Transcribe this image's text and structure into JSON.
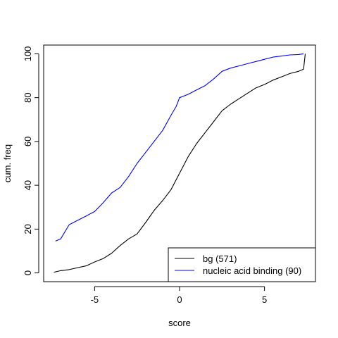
{
  "chart_data": {
    "type": "line",
    "title": "",
    "xlabel": "score",
    "ylabel": "cum. freq",
    "xlim": [
      -8,
      8
    ],
    "ylim": [
      -4,
      104
    ],
    "x_ticks": [
      -5,
      0,
      5
    ],
    "x_tick_labels": [
      "-5",
      "0",
      "5"
    ],
    "y_ticks": [
      0,
      20,
      40,
      60,
      80,
      100
    ],
    "y_tick_labels": [
      "0",
      "20",
      "40",
      "60",
      "80",
      "100"
    ],
    "grid": false,
    "legend_position": "bottom-right",
    "series": [
      {
        "name": "bg (571)",
        "color": "#000000",
        "x": [
          -7.4,
          -7.0,
          -6.5,
          -6.0,
          -5.5,
          -5.0,
          -4.5,
          -4.0,
          -3.5,
          -3.0,
          -2.5,
          -2.0,
          -1.5,
          -1.0,
          -0.5,
          0.0,
          0.5,
          1.0,
          1.5,
          2.0,
          2.5,
          3.0,
          3.5,
          4.0,
          4.5,
          5.0,
          5.5,
          6.0,
          6.5,
          7.0,
          7.3,
          7.4
        ],
        "y": [
          0.3,
          1.0,
          1.5,
          2.4,
          3.2,
          5.0,
          6.5,
          9.0,
          12.5,
          15.5,
          17.8,
          23.0,
          28.5,
          33.0,
          38.0,
          45.5,
          53.0,
          59.0,
          64.0,
          69.0,
          74.0,
          77.0,
          79.5,
          82.0,
          84.5,
          86.0,
          88.0,
          89.5,
          91.0,
          92.0,
          93.0,
          100.0
        ]
      },
      {
        "name": "nucleic acid binding (90)",
        "color": "#0000ff",
        "x": [
          -7.3,
          -7.0,
          -6.5,
          -6.0,
          -5.5,
          -5.0,
          -4.5,
          -4.0,
          -3.5,
          -3.0,
          -2.5,
          -2.0,
          -1.5,
          -1.0,
          -0.5,
          -0.2,
          0.0,
          0.5,
          1.0,
          1.5,
          2.0,
          2.5,
          3.0,
          3.5,
          4.0,
          4.5,
          5.0,
          5.5,
          6.0,
          6.5,
          7.0,
          7.3
        ],
        "y": [
          14.5,
          15.5,
          22.0,
          24.0,
          26.0,
          28.0,
          32.0,
          36.5,
          39.0,
          44.0,
          50.0,
          55.0,
          60.0,
          65.0,
          72.0,
          76.0,
          80.0,
          81.5,
          83.5,
          85.5,
          88.5,
          92.0,
          93.5,
          94.5,
          95.5,
          96.5,
          97.5,
          98.5,
          99.0,
          99.5,
          99.7,
          100.0
        ]
      }
    ]
  }
}
